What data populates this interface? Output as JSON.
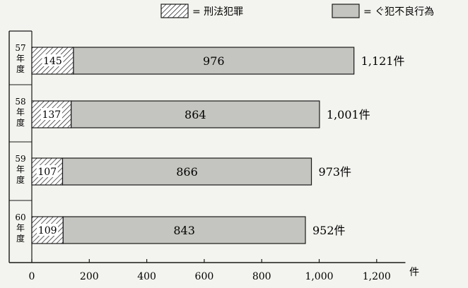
{
  "chart_data": {
    "type": "bar",
    "orientation": "horizontal",
    "stacked": true,
    "categories": [
      "57\n年\n度",
      "58\n年\n度",
      "59\n年\n度",
      "60\n年\n度"
    ],
    "series": [
      {
        "name": "刑法犯罪",
        "values": [
          145,
          137,
          107,
          109
        ],
        "fill": "hatched"
      },
      {
        "name": "ぐ犯不良行為",
        "values": [
          976,
          864,
          866,
          843
        ],
        "fill": "#c4c4c0"
      }
    ],
    "totals": [
      "1,121件",
      "1,001件",
      "973件",
      "952件"
    ],
    "legend_items": [
      "= 刑法犯罪",
      "= ぐ犯不良行為"
    ],
    "legend_position": "top",
    "x_ticks": [
      "0",
      "200",
      "400",
      "600",
      "800",
      "1,000",
      "1,200"
    ],
    "x_unit": "件",
    "xlim": [
      0,
      1300
    ],
    "grid": false
  }
}
